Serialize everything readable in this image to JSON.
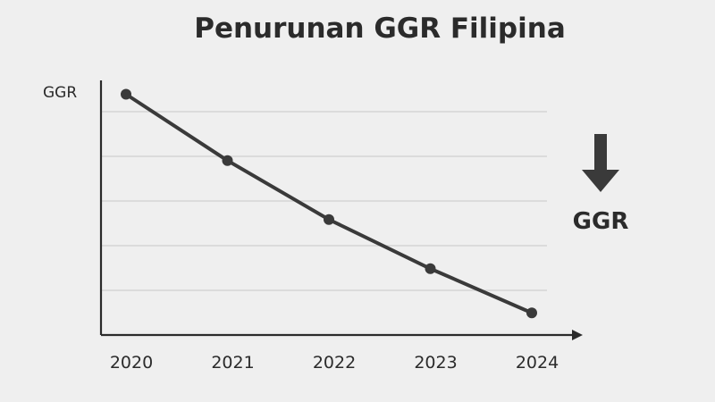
{
  "chart_data": {
    "type": "line",
    "title": "Penurunan GGR Filipina",
    "ylabel": "GGR",
    "xlabel": "",
    "categories": [
      "2020",
      "2021",
      "2022",
      "2023",
      "2024"
    ],
    "values": [
      4.9,
      3.55,
      2.35,
      1.35,
      0.45
    ],
    "ylim": [
      0,
      5
    ],
    "grid": true,
    "legend": "none"
  },
  "annotation": {
    "label": "GGR",
    "icon": "down-arrow-icon"
  },
  "colors": {
    "background": "#efefef",
    "line": "#3a3a3a",
    "text": "#2b2b2b",
    "grid": "#cfcfcf"
  }
}
